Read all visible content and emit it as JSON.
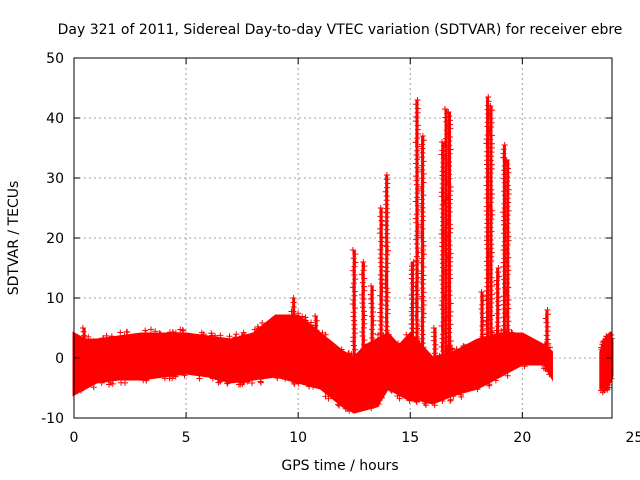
{
  "chart_data": {
    "type": "scatter",
    "title": "Day 321 of 2011, Sidereal Day-to-day VTEC variation (SDTVAR) for receiver ebre",
    "xlabel": "GPS time / hours",
    "ylabel": "SDTVAR / TECUs",
    "xlim": [
      0,
      24
    ],
    "ylim": [
      -10,
      50
    ],
    "xticks": [
      0,
      5,
      10,
      15,
      20,
      25
    ],
    "yticks": [
      -10,
      0,
      10,
      20,
      30,
      40,
      50
    ],
    "xtick_labels": [
      "0",
      "5",
      "10",
      "15",
      "20",
      "25"
    ],
    "ytick_labels": [
      "-10",
      "0",
      "10",
      "20",
      "30",
      "40",
      "50"
    ],
    "grid": true,
    "marker": "+",
    "color": "#ff0000",
    "series": [
      {
        "name": "SDTVAR",
        "envelope": {
          "x": [
            0,
            0.5,
            1,
            2,
            3,
            4,
            5,
            6,
            7,
            8,
            9,
            10,
            11,
            12,
            12.5,
            13,
            13.5,
            14,
            14.5,
            15,
            15.5,
            16,
            17,
            18,
            19,
            20,
            21,
            21.3
          ],
          "lower": [
            -6,
            -5,
            -4,
            -3.5,
            -3.5,
            -3,
            -2.5,
            -3,
            -4,
            -3.5,
            -3,
            -4,
            -5,
            -8,
            -9,
            -8.5,
            -8,
            -5,
            -6,
            -7,
            -7,
            -7.5,
            -6,
            -5,
            -3,
            -1,
            -1,
            -3
          ],
          "upper": [
            4,
            3,
            3,
            3.5,
            4,
            4,
            4,
            3.5,
            3,
            4,
            7,
            7,
            4,
            1,
            0,
            2,
            3,
            4,
            2,
            4,
            2,
            0,
            1,
            3,
            4,
            4,
            2,
            1
          ]
        },
        "spikes": [
          {
            "x": 0.45,
            "y": 5
          },
          {
            "x": 9.8,
            "y": 10
          },
          {
            "x": 10.8,
            "y": 7
          },
          {
            "x": 12.5,
            "y": 18
          },
          {
            "x": 12.9,
            "y": 16
          },
          {
            "x": 13.3,
            "y": 12
          },
          {
            "x": 13.7,
            "y": 25
          },
          {
            "x": 13.95,
            "y": 30.5
          },
          {
            "x": 15.1,
            "y": 16
          },
          {
            "x": 15.3,
            "y": 43
          },
          {
            "x": 15.55,
            "y": 37
          },
          {
            "x": 16.1,
            "y": 5
          },
          {
            "x": 16.45,
            "y": 36
          },
          {
            "x": 16.6,
            "y": 41.5
          },
          {
            "x": 16.75,
            "y": 41
          },
          {
            "x": 17.4,
            "y": 2
          },
          {
            "x": 18.2,
            "y": 11
          },
          {
            "x": 18.45,
            "y": 43.5
          },
          {
            "x": 18.6,
            "y": 42
          },
          {
            "x": 18.9,
            "y": 15
          },
          {
            "x": 19.2,
            "y": 35.5
          },
          {
            "x": 19.35,
            "y": 33
          },
          {
            "x": 21.1,
            "y": 8
          }
        ],
        "segment2": {
          "x": [
            23.5,
            23.7,
            23.9,
            24.0
          ],
          "lower": [
            -5,
            -5,
            -4,
            -3
          ],
          "upper": [
            1,
            3,
            4,
            3
          ]
        }
      }
    ]
  }
}
